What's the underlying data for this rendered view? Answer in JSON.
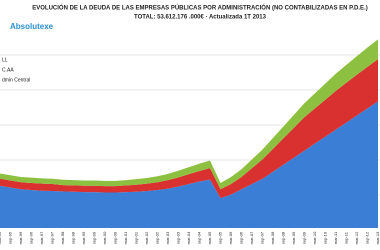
{
  "chart_data": {
    "type": "stacked_area",
    "title": "EVOLUCIÓN DE LA DEUDA DE LAS EMPRESAS PÚBLICAS POR ADMINISTRACIÓN (NO CONTABILIZADAS EN P.D.E.)",
    "subtitle": "TOTAL: 53.612.176 .000€ · Actualizada 1T 2013",
    "logo": "Absolutexe",
    "categories": [
      "mar-95",
      "sep-95",
      "mar-96",
      "sep-96",
      "mar-97",
      "sep-97",
      "mar-98",
      "sep-98",
      "mar-99",
      "sep-99",
      "mar-00",
      "sep-00",
      "mar-01",
      "sep-01",
      "mar-02",
      "sep-02",
      "mar-03",
      "sep-03",
      "mar-04",
      "sep-04",
      "mar-05",
      "sep-05",
      "mar-06",
      "sep-06",
      "mar-07",
      "sep-07",
      "mar-08",
      "sep-08",
      "mar-09",
      "sep-09",
      "mar-10",
      "sep-10",
      "mar-11",
      "sep-11",
      "mar-12",
      "sep-12",
      "mar-13"
    ],
    "series": [
      {
        "name": "dmin Central",
        "color": "#3a7fd5",
        "values": [
          12,
          11.5,
          11,
          10.8,
          10.6,
          10.5,
          10.4,
          10.3,
          10.2,
          10.2,
          10.1,
          10.1,
          10.2,
          10.3,
          10.5,
          10.8,
          11.2,
          11.8,
          12.5,
          13.2,
          13.8,
          8.5,
          9.5,
          11,
          12.5,
          14,
          16,
          18,
          20,
          22,
          24,
          26,
          28,
          30,
          32,
          34,
          36
        ]
      },
      {
        "name": "C.AA",
        "color": "#d93030",
        "values": [
          2,
          2,
          2,
          2,
          2,
          2,
          1.8,
          1.8,
          1.8,
          1.8,
          1.8,
          1.8,
          1.9,
          2,
          2.1,
          2.2,
          2.4,
          2.6,
          2.8,
          3,
          3.2,
          2.5,
          3,
          3.5,
          4.5,
          5.5,
          6.5,
          7.5,
          8.5,
          9.5,
          10,
          10.5,
          11,
          11.3,
          11.6,
          11.8,
          12
        ]
      },
      {
        "name": "LL",
        "color": "#8dc040",
        "values": [
          1.5,
          1.5,
          1.5,
          1.5,
          1.5,
          1.5,
          1.5,
          1.5,
          1.5,
          1.5,
          1.5,
          1.5,
          1.5,
          1.6,
          1.6,
          1.7,
          1.8,
          1.9,
          2,
          2.1,
          2.2,
          1.8,
          2,
          2.2,
          2.5,
          2.8,
          3.1,
          3.4,
          3.7,
          4,
          4.3,
          4.6,
          4.9,
          5.1,
          5.3,
          5.5,
          5.6
        ]
      }
    ],
    "ylim": [
      0,
      54
    ],
    "grid": true
  }
}
